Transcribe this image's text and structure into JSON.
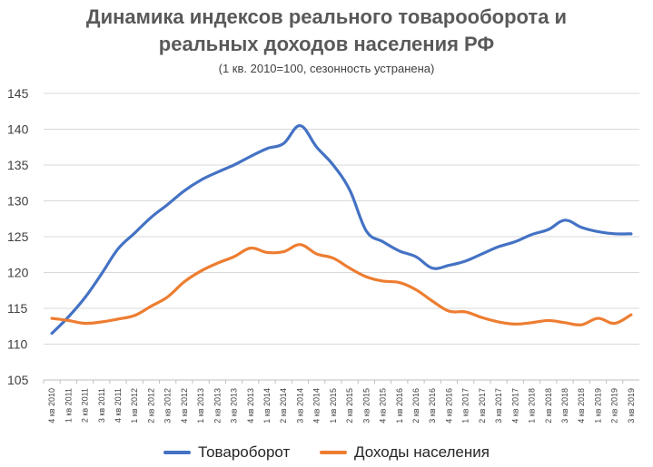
{
  "chart_data": {
    "type": "line",
    "title_line1": "Динамика индексов реального товарооборота и",
    "title_line2": "реальных доходов населения РФ",
    "subtitle": "(1 кв. 2010=100, сезонность устранена)",
    "xlabel": "",
    "ylabel": "",
    "ylim": [
      105,
      145
    ],
    "yticks": [
      "105",
      "110",
      "115",
      "120",
      "125",
      "130",
      "135",
      "140",
      "145"
    ],
    "grid": true,
    "legend_position": "bottom",
    "categories": [
      "4 кв 2010",
      "1 кв 2011",
      "2 кв 2011",
      "3 кв 2011",
      "4 кв 2011",
      "1 кв 2012",
      "2 кв 2012",
      "3 кв 2012",
      "4 кв 2012",
      "1 кв 2013",
      "2 кв 2013",
      "3 кв 2013",
      "4 кв 2013",
      "1 кв 2014",
      "2 кв 2014",
      "3 кв 2014",
      "4 кв 2014",
      "1 кв 2015",
      "2 кв 2015",
      "3 кв 2015",
      "4 кв 2015",
      "1 кв 2016",
      "2 кв 2016",
      "3 кв 2016",
      "4 кв 2016",
      "1 кв 2017",
      "2 кв 2017",
      "3 кв 2017",
      "4 кв 2017",
      "1 кв 2018",
      "2 кв 2018",
      "3 кв 2018",
      "4 кв 2018",
      "1 кв 2019",
      "2 кв 2019",
      "3 кв 2019"
    ],
    "series": [
      {
        "name": "Товароборот",
        "color": "#4472C4",
        "values": [
          111.5,
          113.8,
          116.5,
          119.8,
          123.3,
          125.5,
          127.7,
          129.5,
          131.4,
          132.9,
          134.0,
          135.0,
          136.2,
          137.3,
          138.0,
          140.5,
          137.5,
          135.0,
          131.5,
          125.8,
          124.3,
          123.0,
          122.2,
          120.6,
          121.0,
          121.6,
          122.6,
          123.6,
          124.3,
          125.3,
          126.0,
          127.3,
          126.3,
          125.7,
          125.4,
          125.4
        ]
      },
      {
        "name": "Доходы населения",
        "color": "#ED7D31",
        "values": [
          113.6,
          113.3,
          112.9,
          113.1,
          113.5,
          114.0,
          115.3,
          116.6,
          118.7,
          120.2,
          121.3,
          122.2,
          123.4,
          122.8,
          122.9,
          123.9,
          122.6,
          122.0,
          120.6,
          119.4,
          118.8,
          118.6,
          117.6,
          116.0,
          114.6,
          114.5,
          113.7,
          113.1,
          112.8,
          113.0,
          113.3,
          113.0,
          112.7,
          113.6,
          112.9,
          114.1
        ]
      }
    ]
  }
}
